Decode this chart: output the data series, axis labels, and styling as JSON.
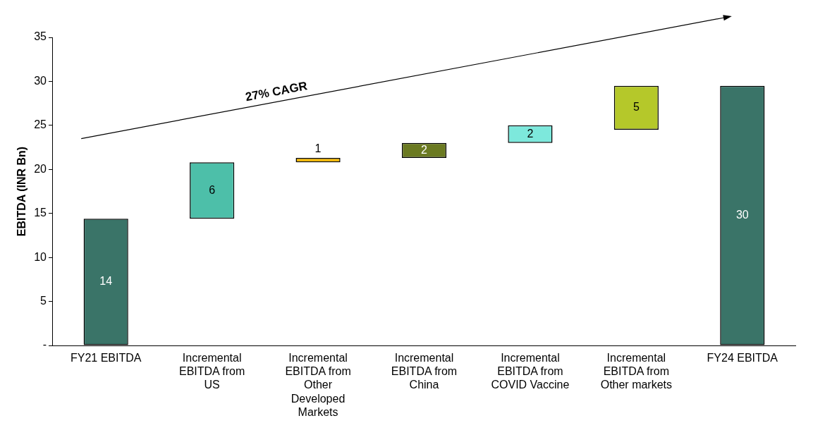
{
  "chart_data": {
    "type": "bar",
    "ylabel": "EBITDA (INR Bn)",
    "categories": [
      "FY21 EBITDA",
      "Incremental EBITDA from US",
      "Incremental EBITDA from Other Developed Markets",
      "Incremental EBITDA from China",
      "Incremental EBITDA from COVID Vaccine",
      "Incremental EBITDA from Other markets",
      "FY24 EBITDA"
    ],
    "values": [
      14.4,
      6.4,
      0.5,
      1.7,
      2.0,
      5.0,
      29.5
    ],
    "base": [
      0,
      14.4,
      20.8,
      21.3,
      23.0,
      24.5,
      0
    ],
    "colors": [
      "#3a7468",
      "#4dbfa9",
      "#f5b800",
      "#6b7a22",
      "#7de8dc",
      "#b5c82a",
      "#3a7468"
    ],
    "value_labels": [
      "14",
      "6",
      "1",
      "2",
      "2",
      "5",
      "30"
    ],
    "ylim": [
      0,
      35
    ],
    "yticks": [
      {
        "value": 0,
        "label": "-"
      },
      5,
      10,
      15,
      20,
      25,
      30,
      35
    ],
    "grid": false,
    "legend": false,
    "annotations": [
      "27% CAGR"
    ]
  }
}
